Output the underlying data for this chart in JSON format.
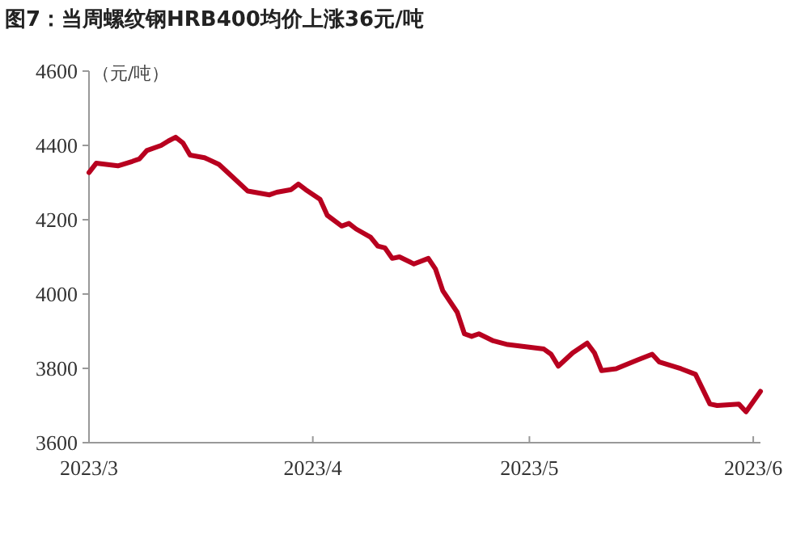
{
  "chart_data": {
    "type": "line",
    "title": "图7：当周螺纹钢HRB400均价上涨36元/吨",
    "ylabel": "（元/吨）",
    "color": "#b8001f",
    "x": [
      "2023-03-01",
      "2023-03-02",
      "2023-03-05",
      "2023-03-07",
      "2023-03-08",
      "2023-03-09",
      "2023-03-11",
      "2023-03-12",
      "2023-03-13",
      "2023-03-14",
      "2023-03-15",
      "2023-03-17",
      "2023-03-19",
      "2023-03-21",
      "2023-03-23",
      "2023-03-26",
      "2023-03-27",
      "2023-03-29",
      "2023-03-30",
      "2023-03-31",
      "2023-04-02",
      "2023-04-03",
      "2023-04-05",
      "2023-04-06",
      "2023-04-07",
      "2023-04-09",
      "2023-04-10",
      "2023-04-11",
      "2023-04-12",
      "2023-04-13",
      "2023-04-15",
      "2023-04-17",
      "2023-04-18",
      "2023-04-19",
      "2023-04-21",
      "2023-04-22",
      "2023-04-23",
      "2023-04-24",
      "2023-04-26",
      "2023-04-28",
      "2023-05-03",
      "2023-05-04",
      "2023-05-05",
      "2023-05-07",
      "2023-05-09",
      "2023-05-10",
      "2023-05-11",
      "2023-05-13",
      "2023-05-16",
      "2023-05-18",
      "2023-05-19",
      "2023-05-22",
      "2023-05-24",
      "2023-05-26",
      "2023-05-27",
      "2023-05-30",
      "2023-05-31",
      "2023-06-02"
    ],
    "values": [
      4327,
      4352,
      4345,
      4357,
      4364,
      4386,
      4400,
      4412,
      4422,
      4407,
      4374,
      4367,
      4349,
      4313,
      4277,
      4267,
      4274,
      4281,
      4296,
      4281,
      4255,
      4212,
      4183,
      4190,
      4175,
      4153,
      4129,
      4124,
      4096,
      4100,
      4081,
      4096,
      4067,
      4009,
      3951,
      3893,
      3886,
      3893,
      3874,
      3864,
      3852,
      3838,
      3806,
      3842,
      3868,
      3842,
      3794,
      3799,
      3823,
      3838,
      3817,
      3799,
      3784,
      3704,
      3700,
      3704,
      3683,
      3738
    ],
    "xlim": [
      "2023-03-01",
      "2023-06-02"
    ],
    "xticks": [
      {
        "value": "2023-03-01",
        "label": "2023/3"
      },
      {
        "value": "2023-04-01",
        "label": "2023/4"
      },
      {
        "value": "2023-05-01",
        "label": "2023/5"
      },
      {
        "value": "2023-06-01",
        "label": "2023/6"
      }
    ],
    "ylim": [
      3600,
      4600
    ],
    "yticks": [
      3600,
      3800,
      4000,
      4200,
      4400,
      4600
    ]
  }
}
